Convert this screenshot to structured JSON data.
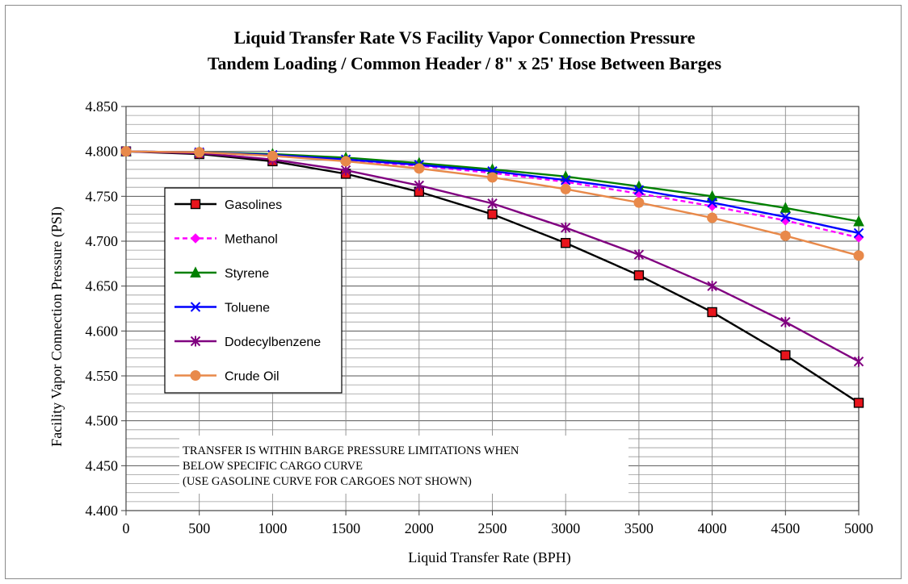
{
  "chart_data": {
    "type": "line",
    "title": "Liquid Transfer Rate VS Facility Vapor Connection Pressure",
    "subtitle": "Tandem Loading / Common Header / 8\" x 25' Hose Between Barges",
    "xlabel": "Liquid Transfer Rate (BPH)",
    "ylabel": "Facility Vapor Connection Pressure (PSI)",
    "xlim": [
      0,
      5000
    ],
    "ylim": [
      4.4,
      4.85
    ],
    "x_ticks": [
      "0",
      "500",
      "1000",
      "1500",
      "2000",
      "2500",
      "3000",
      "3500",
      "4000",
      "4500",
      "5000"
    ],
    "y_ticks": [
      "4.400",
      "4.450",
      "4.500",
      "4.550",
      "4.600",
      "4.650",
      "4.700",
      "4.750",
      "4.800",
      "4.850"
    ],
    "grid": true,
    "legend_position": "left",
    "x": [
      0,
      500,
      1000,
      1500,
      2000,
      2500,
      3000,
      3500,
      4000,
      4500,
      5000
    ],
    "series": [
      {
        "name": "Gasolines",
        "color": "#000000",
        "marker_color": "#e8141c",
        "marker": "square",
        "dash": false,
        "values": [
          4.8,
          4.797,
          4.789,
          4.775,
          4.755,
          4.73,
          4.698,
          4.662,
          4.621,
          4.573,
          4.52
        ]
      },
      {
        "name": "Methanol",
        "color": "#ff00ff",
        "marker_color": "#ff00ff",
        "marker": "diamond",
        "dash": true,
        "values": [
          4.8,
          4.799,
          4.795,
          4.79,
          4.784,
          4.776,
          4.766,
          4.753,
          4.739,
          4.723,
          4.704
        ]
      },
      {
        "name": "Styrene",
        "color": "#008000",
        "marker_color": "#008000",
        "marker": "triangle",
        "dash": false,
        "values": [
          4.8,
          4.799,
          4.797,
          4.793,
          4.787,
          4.78,
          4.772,
          4.761,
          4.75,
          4.737,
          4.722
        ]
      },
      {
        "name": "Toluene",
        "color": "#0000ff",
        "marker_color": "#0000ff",
        "marker": "x",
        "dash": false,
        "values": [
          4.8,
          4.799,
          4.796,
          4.791,
          4.785,
          4.778,
          4.768,
          4.757,
          4.743,
          4.727,
          4.709
        ]
      },
      {
        "name": "Dodecylbenzene",
        "color": "#800080",
        "marker_color": "#800080",
        "marker": "star",
        "dash": false,
        "values": [
          4.8,
          4.798,
          4.791,
          4.779,
          4.762,
          4.742,
          4.715,
          4.685,
          4.65,
          4.61,
          4.566
        ]
      },
      {
        "name": "Crude Oil",
        "color": "#e8894a",
        "marker_color": "#e8894a",
        "marker": "circle",
        "dash": false,
        "values": [
          4.8,
          4.799,
          4.795,
          4.789,
          4.781,
          4.771,
          4.758,
          4.743,
          4.726,
          4.706,
          4.684
        ]
      }
    ],
    "annotation": [
      "TRANSFER IS WITHIN BARGE PRESSURE LIMITATIONS WHEN",
      "BELOW SPECIFIC CARGO CURVE",
      "(USE GASOLINE CURVE FOR CARGOES NOT SHOWN)"
    ]
  }
}
